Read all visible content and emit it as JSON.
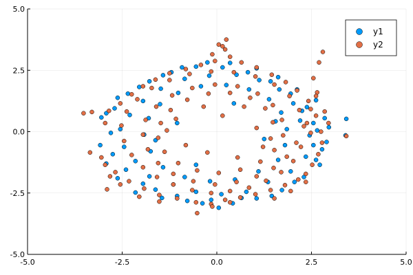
{
  "chart_data": {
    "type": "scatter",
    "title": "",
    "xlabel": "",
    "ylabel": "",
    "xlim": [
      -5,
      5
    ],
    "ylim": [
      -5,
      5
    ],
    "xticks": [
      -5,
      -2.5,
      0,
      2.5,
      5
    ],
    "yticks": [
      -5,
      -2.5,
      0,
      2.5,
      5
    ],
    "xtick_labels": [
      "-5.0",
      "-2.5",
      "0.0",
      "2.5",
      "5.0"
    ],
    "ytick_labels": [
      "-5.0",
      "-2.5",
      "0.0",
      "2.5",
      "5.0"
    ],
    "grid": true,
    "legend_position": "top-right",
    "series": [
      {
        "name": "y1",
        "color": "#009AF9",
        "points": [
          [
            3.42,
            0.52
          ],
          [
            3.4,
            -0.15
          ],
          [
            2.96,
            0.18
          ],
          [
            2.9,
            -0.42
          ],
          [
            2.78,
            -0.72
          ],
          [
            2.62,
            -1.15
          ],
          [
            2.3,
            -1.85
          ],
          [
            1.72,
            -2.38
          ],
          [
            1.05,
            -2.72
          ],
          [
            0.42,
            -2.92
          ],
          [
            0.05,
            -3.1
          ],
          [
            -0.38,
            -2.92
          ],
          [
            -1.05,
            -2.62
          ],
          [
            -1.62,
            -2.36
          ],
          [
            -2.15,
            -2.48
          ],
          [
            -2.62,
            -1.9
          ],
          [
            -2.92,
            -1.3
          ],
          [
            -3.08,
            -0.55
          ],
          [
            -3.05,
            0.58
          ],
          [
            -2.92,
            0.75
          ],
          [
            -2.62,
            1.38
          ],
          [
            -2.05,
            1.82
          ],
          [
            -1.42,
            2.3
          ],
          [
            -0.92,
            2.62
          ],
          [
            -0.25,
            2.82
          ],
          [
            0.35,
            2.8
          ],
          [
            1.05,
            2.58
          ],
          [
            1.62,
            2.22
          ],
          [
            2.12,
            1.72
          ],
          [
            2.62,
            1.28
          ],
          [
            2.85,
            0.55
          ],
          [
            2.45,
            -0.15
          ],
          [
            2.25,
            0.85
          ],
          [
            2.35,
            -1.02
          ],
          [
            1.95,
            -1.62
          ],
          [
            1.35,
            -2.05
          ],
          [
            0.78,
            -2.45
          ],
          [
            0.12,
            -2.55
          ],
          [
            -0.55,
            -2.45
          ],
          [
            -1.15,
            -2.15
          ],
          [
            -1.78,
            -1.82
          ],
          [
            -2.15,
            -1.2
          ],
          [
            -2.45,
            -0.62
          ],
          [
            -2.55,
            0.1
          ],
          [
            -2.3,
            0.68
          ],
          [
            -1.95,
            1.25
          ],
          [
            -1.48,
            1.75
          ],
          [
            -0.85,
            2.15
          ],
          [
            -0.2,
            2.28
          ],
          [
            0.52,
            2.32
          ],
          [
            1.12,
            2.1
          ],
          [
            1.65,
            1.72
          ],
          [
            2.02,
            1.15
          ],
          [
            2.2,
            0.45
          ],
          [
            1.8,
            -0.55
          ],
          [
            1.62,
            -1.15
          ],
          [
            1.1,
            -1.62
          ],
          [
            0.48,
            -1.95
          ],
          [
            -0.18,
            -2.02
          ],
          [
            -0.85,
            -1.85
          ],
          [
            -1.42,
            -1.45
          ],
          [
            -1.75,
            -0.8
          ],
          [
            -1.92,
            -0.12
          ],
          [
            -1.8,
            0.55
          ],
          [
            -1.5,
            1.12
          ],
          [
            -1.02,
            1.58
          ],
          [
            -0.42,
            1.85
          ],
          [
            0.25,
            1.9
          ],
          [
            0.85,
            1.72
          ],
          [
            1.38,
            1.32
          ],
          [
            1.7,
            0.78
          ],
          [
            1.85,
            0.1
          ],
          [
            2.65,
            0.05
          ],
          [
            2.72,
            -1.35
          ],
          [
            2.05,
            -2.05
          ],
          [
            1.45,
            -2.62
          ],
          [
            0.65,
            -2.7
          ],
          [
            -0.15,
            -2.78
          ],
          [
            -0.78,
            -2.82
          ],
          [
            -1.45,
            -2.7
          ],
          [
            -1.95,
            -2.12
          ],
          [
            -2.4,
            -1.55
          ],
          [
            -2.75,
            -0.92
          ],
          [
            -2.8,
            -0.05
          ],
          [
            -2.7,
            0.95
          ],
          [
            -2.35,
            1.55
          ],
          [
            -1.78,
            2.05
          ],
          [
            -1.2,
            2.42
          ],
          [
            -0.55,
            2.65
          ],
          [
            0.15,
            2.62
          ],
          [
            0.82,
            2.42
          ],
          [
            1.42,
            2.05
          ],
          [
            1.95,
            1.55
          ],
          [
            2.38,
            1.0
          ],
          [
            2.55,
            0.35
          ],
          [
            2.55,
            -0.55
          ],
          [
            1.25,
            -0.3
          ],
          [
            -1.05,
            0.35
          ],
          [
            0.45,
            1.15
          ],
          [
            -0.55,
            -1.35
          ],
          [
            1.55,
            0.42
          ],
          [
            -1.62,
            -0.35
          ]
        ]
      },
      {
        "name": "y2",
        "color": "#E26F46",
        "points": [
          [
            2.8,
            3.25
          ],
          [
            2.7,
            2.82
          ],
          [
            2.55,
            2.18
          ],
          [
            2.65,
            1.6
          ],
          [
            2.62,
            1.45
          ],
          [
            2.48,
            0.92
          ],
          [
            2.38,
            0.35
          ],
          [
            2.75,
            0.0
          ],
          [
            3.42,
            -0.18
          ],
          [
            2.78,
            -0.45
          ],
          [
            2.68,
            -0.92
          ],
          [
            2.52,
            -1.35
          ],
          [
            2.35,
            -1.72
          ],
          [
            2.15,
            -1.95
          ],
          [
            1.8,
            -2.18
          ],
          [
            1.42,
            -2.38
          ],
          [
            1.02,
            -2.55
          ],
          [
            0.62,
            -2.68
          ],
          [
            0.22,
            -2.78
          ],
          [
            -0.15,
            -2.95
          ],
          [
            -0.55,
            -2.88
          ],
          [
            -1.05,
            -2.72
          ],
          [
            -1.52,
            -2.58
          ],
          [
            -1.92,
            -2.32
          ],
          [
            -2.32,
            -2.02
          ],
          [
            -2.68,
            -1.65
          ],
          [
            -2.95,
            -1.35
          ],
          [
            -3.05,
            -1.05
          ],
          [
            -2.9,
            -2.35
          ],
          [
            -3.35,
            -0.85
          ],
          [
            -3.52,
            0.75
          ],
          [
            -3.3,
            0.8
          ],
          [
            -2.95,
            0.35
          ],
          [
            -2.85,
            0.85
          ],
          [
            -2.55,
            1.15
          ],
          [
            -2.25,
            1.52
          ],
          [
            -1.95,
            1.85
          ],
          [
            -1.62,
            2.12
          ],
          [
            -1.25,
            2.38
          ],
          [
            -0.82,
            2.55
          ],
          [
            -0.42,
            2.72
          ],
          [
            -0.05,
            2.88
          ],
          [
            0.35,
            3.05
          ],
          [
            0.22,
            3.35
          ],
          [
            0.05,
            3.55
          ],
          [
            0.15,
            3.48
          ],
          [
            0.25,
            3.75
          ],
          [
            -0.12,
            3.15
          ],
          [
            0.65,
            2.82
          ],
          [
            1.05,
            2.62
          ],
          [
            1.45,
            2.32
          ],
          [
            1.82,
            2.02
          ],
          [
            2.12,
            1.68
          ],
          [
            2.42,
            1.25
          ],
          [
            2.62,
            0.65
          ],
          [
            2.48,
            -0.05
          ],
          [
            2.22,
            -0.62
          ],
          [
            2.02,
            -1.2
          ],
          [
            1.7,
            -1.65
          ],
          [
            1.3,
            -2.0
          ],
          [
            0.85,
            -2.28
          ],
          [
            0.35,
            -2.42
          ],
          [
            -0.15,
            -2.5
          ],
          [
            -0.65,
            -2.38
          ],
          [
            -1.15,
            -2.15
          ],
          [
            -1.58,
            -1.85
          ],
          [
            -1.95,
            -1.45
          ],
          [
            -2.25,
            -0.95
          ],
          [
            -2.45,
            -0.38
          ],
          [
            -2.52,
            0.25
          ],
          [
            -2.38,
            0.82
          ],
          [
            -2.1,
            1.32
          ],
          [
            -1.72,
            1.78
          ],
          [
            -1.25,
            2.1
          ],
          [
            -0.72,
            2.35
          ],
          [
            -0.15,
            2.45
          ],
          [
            0.45,
            2.42
          ],
          [
            1.02,
            2.25
          ],
          [
            1.52,
            1.92
          ],
          [
            1.92,
            1.45
          ],
          [
            2.18,
            0.88
          ],
          [
            2.3,
            0.22
          ],
          [
            2.1,
            -0.45
          ],
          [
            1.85,
            -1.02
          ],
          [
            1.5,
            -1.48
          ],
          [
            1.05,
            -1.82
          ],
          [
            0.52,
            -2.05
          ],
          [
            -0.05,
            -2.15
          ],
          [
            -0.62,
            -2.02
          ],
          [
            -1.15,
            -1.72
          ],
          [
            -1.55,
            -1.28
          ],
          [
            -1.82,
            -0.72
          ],
          [
            -1.95,
            -0.12
          ],
          [
            -1.88,
            0.48
          ],
          [
            -1.6,
            1.02
          ],
          [
            -1.18,
            1.48
          ],
          [
            -0.65,
            1.78
          ],
          [
            -0.05,
            1.92
          ],
          [
            0.55,
            1.85
          ],
          [
            1.08,
            1.55
          ],
          [
            1.48,
            1.08
          ],
          [
            1.72,
            0.48
          ],
          [
            1.75,
            -0.15
          ],
          [
            1.52,
            -0.75
          ],
          [
            1.15,
            -1.22
          ],
          [
            0.62,
            -1.55
          ],
          [
            0.05,
            -1.68
          ],
          [
            -0.52,
            -1.58
          ],
          [
            -1.02,
            -1.28
          ],
          [
            -1.38,
            -0.82
          ],
          [
            -1.55,
            -0.25
          ],
          [
            -1.48,
            0.35
          ],
          [
            -1.22,
            0.88
          ],
          [
            -0.78,
            1.3
          ],
          [
            -0.22,
            1.55
          ],
          [
            0.35,
            1.58
          ],
          [
            0.88,
            1.38
          ],
          [
            1.28,
            0.95
          ],
          [
            1.48,
            0.38
          ],
          [
            1.42,
            -0.28
          ],
          [
            -0.52,
            -3.32
          ],
          [
            -0.12,
            -3.05
          ],
          [
            0.35,
            -2.88
          ],
          [
            -1.52,
            -2.85
          ],
          [
            -2.05,
            -2.65
          ],
          [
            -2.55,
            -2.15
          ],
          [
            -2.82,
            -1.82
          ],
          [
            2.35,
            -2.05
          ],
          [
            1.95,
            -2.42
          ],
          [
            1.52,
            -2.72
          ],
          [
            2.85,
            0.82
          ],
          [
            2.95,
            0.35
          ],
          [
            0.72,
            1.02
          ],
          [
            -0.35,
            1.02
          ],
          [
            0.55,
            -1.05
          ],
          [
            -0.82,
            -0.55
          ],
          [
            1.05,
            0.15
          ],
          [
            -1.08,
            0.52
          ],
          [
            0.15,
            0.65
          ],
          [
            -0.25,
            -0.85
          ],
          [
            1.22,
            -0.62
          ],
          [
            -1.32,
            0.05
          ]
        ]
      }
    ]
  }
}
